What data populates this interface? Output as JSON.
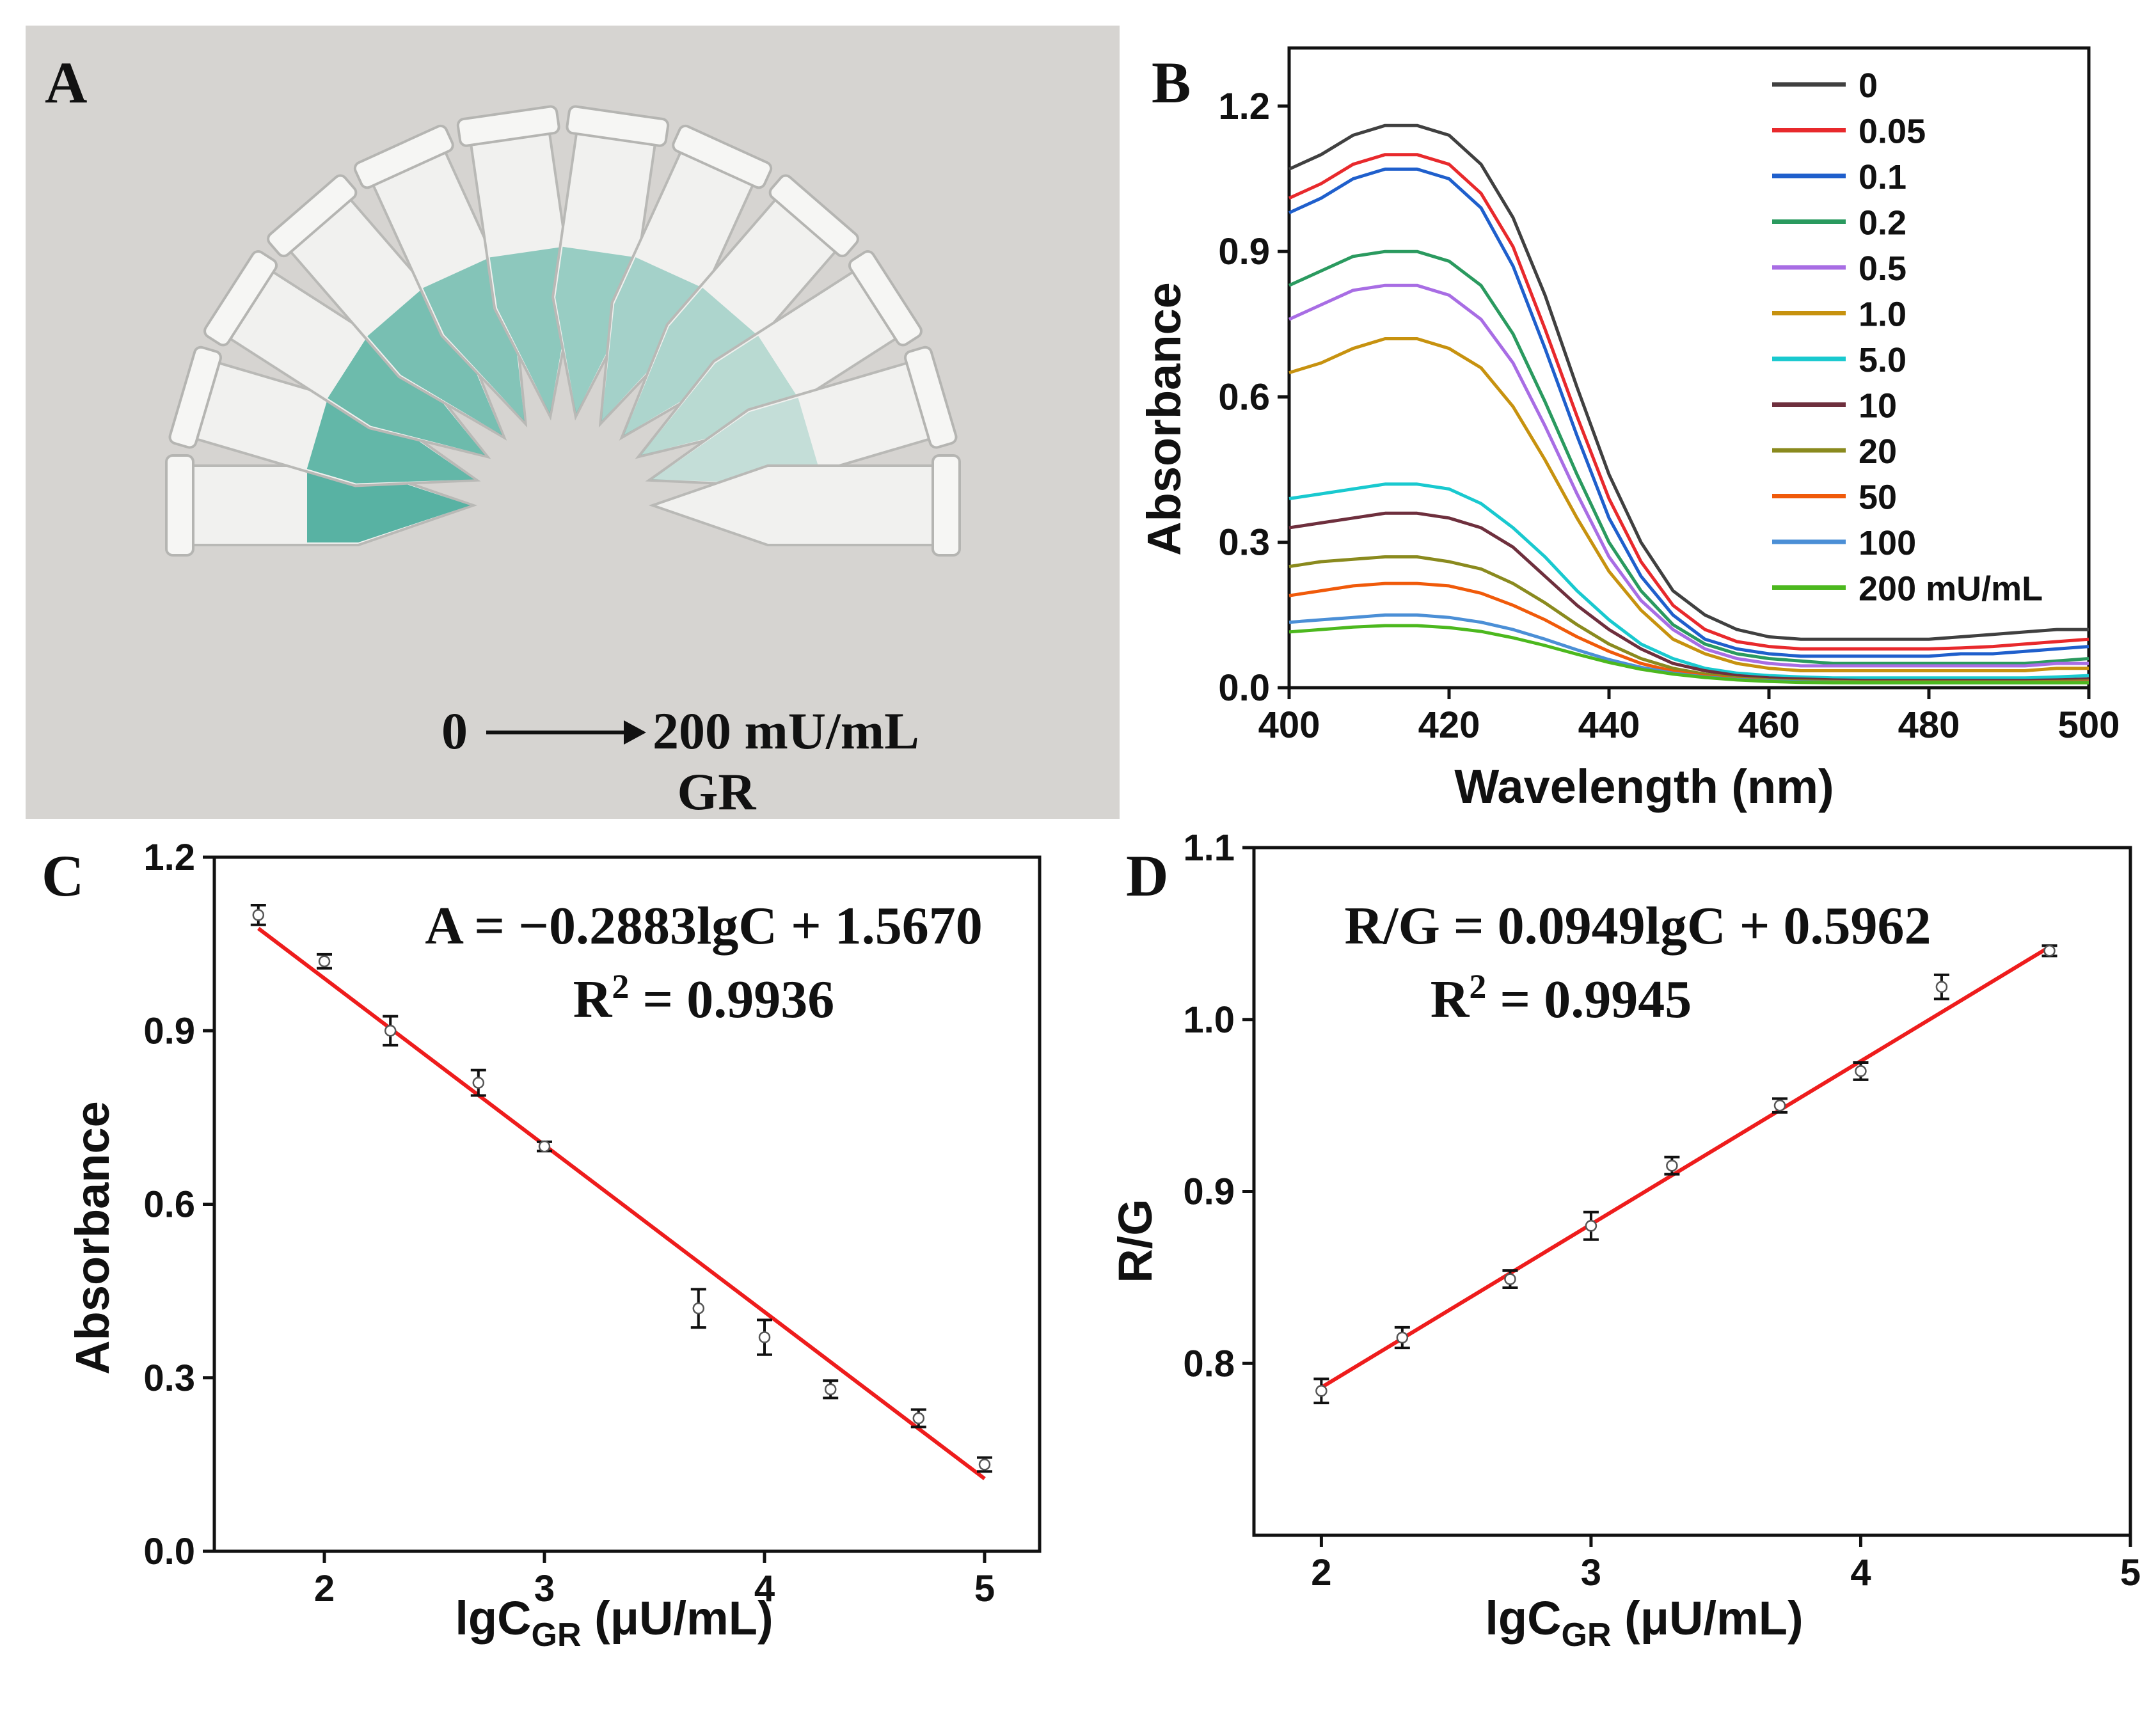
{
  "colors": {
    "fit_line": "#ee1c1c",
    "solution_teal": "#4fae9e",
    "photo_bg": "#d6d4d1"
  },
  "panel_a": {
    "letter": "A",
    "icon": "photo-of-tubes",
    "tube_count": 12,
    "range_start": "0",
    "range_end": "200 mU/mL",
    "analyte": "GR"
  },
  "chart_data": [
    {
      "panel": "B",
      "type": "line",
      "xlabel": "Wavelength (nm)",
      "ylabel": "Absorbance",
      "xlim": [
        400,
        500
      ],
      "ylim": [
        0,
        1.32
      ],
      "xticks": [
        "400",
        "420",
        "440",
        "460",
        "480",
        "500"
      ],
      "yticks": [
        "0.0",
        "0.3",
        "0.6",
        "0.9",
        "1.2"
      ],
      "legend_position": "top-right",
      "series": [
        {
          "name": "0",
          "color": "#404040",
          "values": [
            1.07,
            1.1,
            1.14,
            1.16,
            1.16,
            1.14,
            1.08,
            0.97,
            0.81,
            0.62,
            0.44,
            0.3,
            0.2,
            0.15,
            0.12,
            0.105,
            0.1,
            0.1,
            0.1,
            0.1,
            0.1,
            0.105,
            0.11,
            0.115,
            0.12,
            0.12
          ]
        },
        {
          "name": "0.05",
          "color": "#e8292c",
          "values": [
            1.01,
            1.04,
            1.08,
            1.1,
            1.1,
            1.08,
            1.02,
            0.91,
            0.74,
            0.56,
            0.39,
            0.26,
            0.17,
            0.12,
            0.095,
            0.085,
            0.08,
            0.08,
            0.08,
            0.08,
            0.08,
            0.082,
            0.085,
            0.09,
            0.095,
            0.1
          ]
        },
        {
          "name": "0.1",
          "color": "#1f5fcc",
          "values": [
            0.98,
            1.01,
            1.05,
            1.07,
            1.07,
            1.05,
            0.99,
            0.87,
            0.7,
            0.52,
            0.35,
            0.23,
            0.15,
            0.1,
            0.08,
            0.07,
            0.065,
            0.065,
            0.065,
            0.065,
            0.065,
            0.07,
            0.07,
            0.075,
            0.08,
            0.085
          ]
        },
        {
          "name": "0.2",
          "color": "#2a9a5f",
          "values": [
            0.83,
            0.86,
            0.89,
            0.9,
            0.9,
            0.88,
            0.83,
            0.73,
            0.59,
            0.44,
            0.3,
            0.2,
            0.13,
            0.09,
            0.07,
            0.06,
            0.055,
            0.05,
            0.05,
            0.05,
            0.05,
            0.05,
            0.05,
            0.05,
            0.055,
            0.06
          ]
        },
        {
          "name": "0.5",
          "color": "#a86de4",
          "values": [
            0.76,
            0.79,
            0.82,
            0.83,
            0.83,
            0.81,
            0.76,
            0.67,
            0.54,
            0.4,
            0.27,
            0.18,
            0.12,
            0.08,
            0.06,
            0.05,
            0.045,
            0.045,
            0.045,
            0.045,
            0.045,
            0.045,
            0.045,
            0.045,
            0.05,
            0.05
          ]
        },
        {
          "name": "1.0",
          "color": "#c7920f",
          "values": [
            0.65,
            0.67,
            0.7,
            0.72,
            0.72,
            0.7,
            0.66,
            0.58,
            0.47,
            0.35,
            0.24,
            0.16,
            0.1,
            0.07,
            0.05,
            0.04,
            0.035,
            0.035,
            0.035,
            0.035,
            0.035,
            0.035,
            0.035,
            0.035,
            0.04,
            0.04
          ]
        },
        {
          "name": "5.0",
          "color": "#19c9cf",
          "values": [
            0.39,
            0.4,
            0.41,
            0.42,
            0.42,
            0.41,
            0.38,
            0.33,
            0.27,
            0.2,
            0.14,
            0.09,
            0.06,
            0.04,
            0.03,
            0.025,
            0.022,
            0.02,
            0.02,
            0.02,
            0.02,
            0.02,
            0.02,
            0.02,
            0.022,
            0.025
          ]
        },
        {
          "name": "10",
          "color": "#6e2f3d",
          "values": [
            0.33,
            0.34,
            0.35,
            0.36,
            0.36,
            0.35,
            0.33,
            0.29,
            0.23,
            0.17,
            0.12,
            0.08,
            0.05,
            0.035,
            0.025,
            0.02,
            0.018,
            0.016,
            0.015,
            0.015,
            0.015,
            0.015,
            0.015,
            0.015,
            0.016,
            0.018
          ]
        },
        {
          "name": "20",
          "color": "#8a8a1e",
          "values": [
            0.25,
            0.26,
            0.265,
            0.27,
            0.27,
            0.26,
            0.245,
            0.215,
            0.175,
            0.13,
            0.09,
            0.06,
            0.04,
            0.028,
            0.02,
            0.016,
            0.014,
            0.013,
            0.012,
            0.012,
            0.012,
            0.012,
            0.012,
            0.012,
            0.013,
            0.014
          ]
        },
        {
          "name": "50",
          "color": "#f05a0a",
          "values": [
            0.19,
            0.2,
            0.21,
            0.215,
            0.215,
            0.21,
            0.195,
            0.17,
            0.14,
            0.105,
            0.075,
            0.05,
            0.034,
            0.024,
            0.018,
            0.014,
            0.012,
            0.011,
            0.01,
            0.01,
            0.01,
            0.01,
            0.01,
            0.01,
            0.011,
            0.012
          ]
        },
        {
          "name": "100",
          "color": "#4b8fd6",
          "values": [
            0.135,
            0.14,
            0.145,
            0.15,
            0.15,
            0.145,
            0.135,
            0.12,
            0.1,
            0.078,
            0.058,
            0.042,
            0.03,
            0.022,
            0.017,
            0.014,
            0.012,
            0.011,
            0.01,
            0.01,
            0.01,
            0.01,
            0.01,
            0.01,
            0.01,
            0.011
          ]
        },
        {
          "name": "200 mU/mL",
          "color": "#4cb81e",
          "values": [
            0.115,
            0.12,
            0.125,
            0.128,
            0.128,
            0.124,
            0.116,
            0.103,
            0.087,
            0.069,
            0.052,
            0.038,
            0.028,
            0.021,
            0.016,
            0.013,
            0.011,
            0.01,
            0.01,
            0.01,
            0.01,
            0.01,
            0.01,
            0.01,
            0.01,
            0.01
          ]
        }
      ],
      "x": [
        400,
        404,
        408,
        412,
        416,
        420,
        424,
        428,
        432,
        436,
        440,
        444,
        448,
        452,
        456,
        460,
        464,
        468,
        472,
        476,
        480,
        484,
        488,
        492,
        496,
        500
      ]
    },
    {
      "panel": "C",
      "type": "scatter",
      "xlabel_main": "lgC",
      "xlabel_sub": "GR",
      "xlabel_unit": " (μU/mL)",
      "ylabel": "Absorbance",
      "xlim": [
        1.5,
        5.25
      ],
      "ylim": [
        0,
        1.2
      ],
      "xticks": [
        "2",
        "3",
        "4",
        "5"
      ],
      "yticks": [
        "0.0",
        "0.3",
        "0.6",
        "0.9",
        "1.2"
      ],
      "equation": "A = −0.2883lgC + 1.5670",
      "r2_label": "R",
      "r2_sup": "2",
      "r2_value": " = 0.9936",
      "slope": -0.2883,
      "intercept": 1.567,
      "fit_range": [
        1.7,
        5.0
      ],
      "points": [
        {
          "x": 1.7,
          "y": 1.1,
          "err": 0.017
        },
        {
          "x": 2.0,
          "y": 1.02,
          "err": 0.012
        },
        {
          "x": 2.3,
          "y": 0.9,
          "err": 0.025
        },
        {
          "x": 2.7,
          "y": 0.81,
          "err": 0.022
        },
        {
          "x": 3.0,
          "y": 0.7,
          "err": 0.008
        },
        {
          "x": 3.7,
          "y": 0.42,
          "err": 0.033
        },
        {
          "x": 4.0,
          "y": 0.37,
          "err": 0.03
        },
        {
          "x": 4.3,
          "y": 0.28,
          "err": 0.015
        },
        {
          "x": 4.7,
          "y": 0.23,
          "err": 0.015
        },
        {
          "x": 5.0,
          "y": 0.15,
          "err": 0.012
        }
      ]
    },
    {
      "panel": "D",
      "type": "scatter",
      "xlabel_main": "lgC",
      "xlabel_sub": "GR",
      "xlabel_unit": " (μU/mL)",
      "ylabel": "R/G",
      "xlim": [
        1.75,
        5.0
      ],
      "ylim": [
        0.7,
        1.1
      ],
      "xticks": [
        "2",
        "3",
        "4",
        "5"
      ],
      "yticks": [
        "0.8",
        "0.9",
        "1.0",
        "1.1"
      ],
      "equation": "R/G = 0.0949lgC + 0.5962",
      "r2_label": "R",
      "r2_sup": "2",
      "r2_value": " = 0.9945",
      "slope": 0.0949,
      "intercept": 0.5962,
      "fit_range": [
        2.0,
        4.7
      ],
      "points": [
        {
          "x": 2.0,
          "y": 0.784,
          "err": 0.007
        },
        {
          "x": 2.3,
          "y": 0.815,
          "err": 0.006
        },
        {
          "x": 2.7,
          "y": 0.849,
          "err": 0.005
        },
        {
          "x": 3.0,
          "y": 0.88,
          "err": 0.008
        },
        {
          "x": 3.3,
          "y": 0.915,
          "err": 0.005
        },
        {
          "x": 3.7,
          "y": 0.95,
          "err": 0.004
        },
        {
          "x": 4.0,
          "y": 0.97,
          "err": 0.005
        },
        {
          "x": 4.3,
          "y": 1.019,
          "err": 0.007
        },
        {
          "x": 4.7,
          "y": 1.04,
          "err": 0.003
        }
      ]
    }
  ],
  "panel_letters": {
    "b": "B",
    "c": "C",
    "d": "D"
  }
}
